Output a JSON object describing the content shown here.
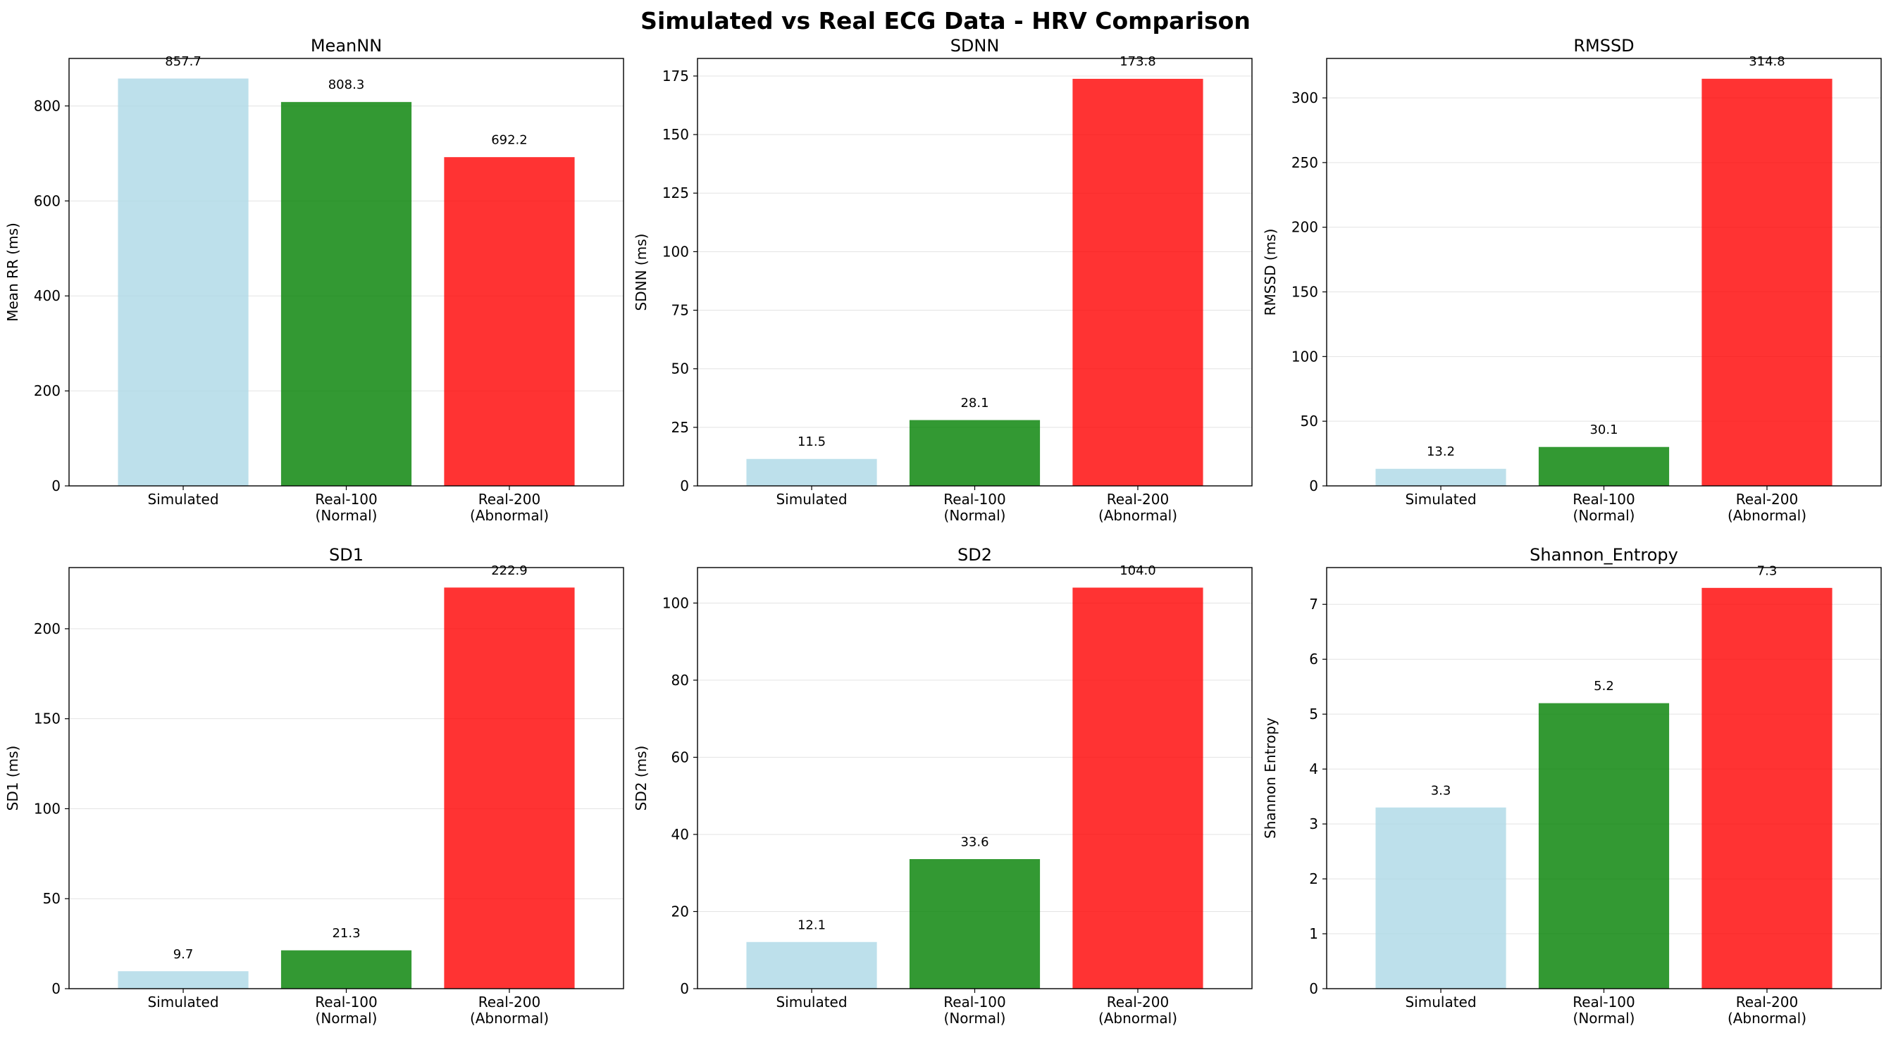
{
  "figure": {
    "title": "Simulated vs Real ECG Data - HRV Comparison"
  },
  "colors": {
    "simulated": "#add8e6",
    "real_100": "#008000",
    "real_200": "#ff0000"
  },
  "chart_data": [
    {
      "type": "bar",
      "title": "MeanNN",
      "ylabel": "Mean RR (ms)",
      "categories": [
        "Simulated",
        "Real-100\n(Normal)",
        "Real-200\n(Abnormal)"
      ],
      "values": [
        857.7,
        808.3,
        692.2
      ],
      "labels": [
        "857.7",
        "808.3",
        "692.2"
      ],
      "ylim": [
        0,
        900
      ],
      "yticks": [
        0,
        200,
        400,
        600,
        800
      ],
      "grid": "y"
    },
    {
      "type": "bar",
      "title": "SDNN",
      "ylabel": "SDNN (ms)",
      "categories": [
        "Simulated",
        "Real-100\n(Normal)",
        "Real-200\n(Abnormal)"
      ],
      "values": [
        11.5,
        28.1,
        173.8
      ],
      "labels": [
        "11.5",
        "28.1",
        "173.8"
      ],
      "ylim": [
        0,
        182.5
      ],
      "yticks": [
        0,
        25,
        50,
        75,
        100,
        125,
        150,
        175
      ],
      "grid": "y"
    },
    {
      "type": "bar",
      "title": "RMSSD",
      "ylabel": "RMSSD (ms)",
      "categories": [
        "Simulated",
        "Real-100\n(Normal)",
        "Real-200\n(Abnormal)"
      ],
      "values": [
        13.2,
        30.1,
        314.8
      ],
      "labels": [
        "13.2",
        "30.1",
        "314.8"
      ],
      "ylim": [
        0,
        330.5
      ],
      "yticks": [
        0,
        50,
        100,
        150,
        200,
        250,
        300
      ],
      "grid": "y"
    },
    {
      "type": "bar",
      "title": "SD1",
      "ylabel": "SD1 (ms)",
      "categories": [
        "Simulated",
        "Real-100\n(Normal)",
        "Real-200\n(Abnormal)"
      ],
      "values": [
        9.7,
        21.3,
        222.9
      ],
      "labels": [
        "9.7",
        "21.3",
        "222.9"
      ],
      "ylim": [
        0,
        234
      ],
      "yticks": [
        0,
        50,
        100,
        150,
        200
      ],
      "grid": "y"
    },
    {
      "type": "bar",
      "title": "SD2",
      "ylabel": "SD2 (ms)",
      "categories": [
        "Simulated",
        "Real-100\n(Normal)",
        "Real-200\n(Abnormal)"
      ],
      "values": [
        12.1,
        33.6,
        104.0
      ],
      "labels": [
        "12.1",
        "33.6",
        "104.0"
      ],
      "ylim": [
        0,
        109.2
      ],
      "yticks": [
        0,
        20,
        40,
        60,
        80,
        100
      ],
      "grid": "y"
    },
    {
      "type": "bar",
      "title": "Shannon_Entropy",
      "ylabel": "Shannon Entropy",
      "categories": [
        "Simulated",
        "Real-100\n(Normal)",
        "Real-200\n(Abnormal)"
      ],
      "values": [
        3.3,
        5.2,
        7.3
      ],
      "labels": [
        "3.3",
        "5.2",
        "7.3"
      ],
      "ylim": [
        0,
        7.67
      ],
      "yticks": [
        0,
        1,
        2,
        3,
        4,
        5,
        6,
        7
      ],
      "grid": "y"
    }
  ]
}
